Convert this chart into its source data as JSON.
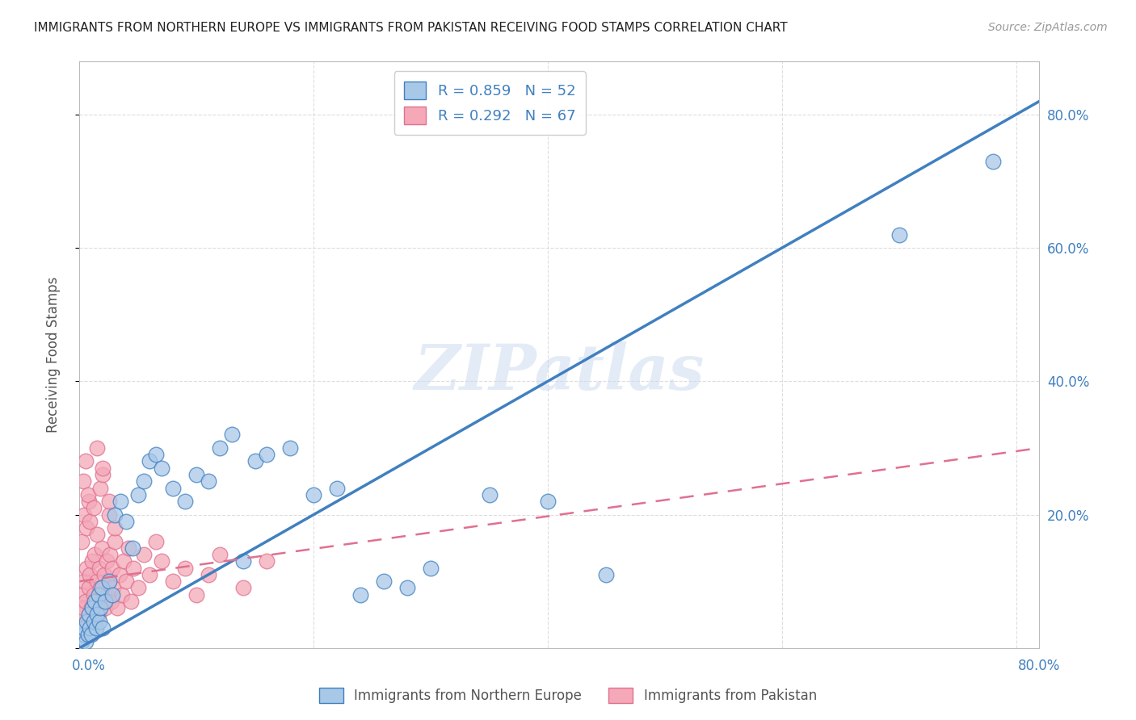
{
  "title": "IMMIGRANTS FROM NORTHERN EUROPE VS IMMIGRANTS FROM PAKISTAN RECEIVING FOOD STAMPS CORRELATION CHART",
  "source": "Source: ZipAtlas.com",
  "ylabel": "Receiving Food Stamps",
  "blue_R": "R = 0.859",
  "blue_N": "N = 52",
  "pink_R": "R = 0.292",
  "pink_N": "N = 67",
  "legend_label_blue": "Immigrants from Northern Europe",
  "legend_label_pink": "Immigrants from Pakistan",
  "blue_color": "#A8C8E8",
  "pink_color": "#F4A8B8",
  "blue_line_color": "#4080C0",
  "pink_line_color": "#E07090",
  "watermark": "ZIPatlas",
  "background_color": "#FFFFFF",
  "grid_color": "#DDDDDD",
  "xlim": [
    0.0,
    0.82
  ],
  "ylim": [
    0.0,
    0.88
  ],
  "blue_line_x0": 0.0,
  "blue_line_y0": 0.0,
  "blue_line_x1": 0.82,
  "blue_line_y1": 0.82,
  "pink_line_x0": 0.0,
  "pink_line_y0": 0.1,
  "pink_line_x1": 0.82,
  "pink_line_y1": 0.3,
  "blue_scatter_x": [
    0.002,
    0.003,
    0.004,
    0.005,
    0.006,
    0.007,
    0.008,
    0.009,
    0.01,
    0.011,
    0.012,
    0.013,
    0.014,
    0.015,
    0.016,
    0.017,
    0.018,
    0.019,
    0.02,
    0.022,
    0.025,
    0.028,
    0.03,
    0.035,
    0.04,
    0.045,
    0.05,
    0.055,
    0.06,
    0.065,
    0.07,
    0.08,
    0.09,
    0.1,
    0.11,
    0.12,
    0.13,
    0.14,
    0.15,
    0.16,
    0.18,
    0.2,
    0.22,
    0.24,
    0.26,
    0.28,
    0.3,
    0.35,
    0.4,
    0.45,
    0.7,
    0.78
  ],
  "blue_scatter_y": [
    0.01,
    0.02,
    0.03,
    0.01,
    0.04,
    0.02,
    0.05,
    0.03,
    0.02,
    0.06,
    0.04,
    0.07,
    0.03,
    0.05,
    0.08,
    0.04,
    0.06,
    0.09,
    0.03,
    0.07,
    0.1,
    0.08,
    0.2,
    0.22,
    0.19,
    0.15,
    0.23,
    0.25,
    0.28,
    0.29,
    0.27,
    0.24,
    0.22,
    0.26,
    0.25,
    0.3,
    0.32,
    0.13,
    0.28,
    0.29,
    0.3,
    0.23,
    0.24,
    0.08,
    0.1,
    0.09,
    0.12,
    0.23,
    0.22,
    0.11,
    0.62,
    0.73
  ],
  "pink_scatter_x": [
    0.001,
    0.002,
    0.003,
    0.004,
    0.005,
    0.006,
    0.007,
    0.008,
    0.009,
    0.01,
    0.011,
    0.012,
    0.013,
    0.014,
    0.015,
    0.016,
    0.017,
    0.018,
    0.019,
    0.02,
    0.021,
    0.022,
    0.023,
    0.024,
    0.025,
    0.026,
    0.027,
    0.028,
    0.029,
    0.03,
    0.032,
    0.034,
    0.036,
    0.038,
    0.04,
    0.042,
    0.044,
    0.046,
    0.05,
    0.055,
    0.06,
    0.065,
    0.07,
    0.08,
    0.09,
    0.1,
    0.11,
    0.12,
    0.14,
    0.16,
    0.002,
    0.004,
    0.006,
    0.008,
    0.003,
    0.005,
    0.007,
    0.009,
    0.012,
    0.015,
    0.018,
    0.02,
    0.025,
    0.015,
    0.02,
    0.025,
    0.03
  ],
  "pink_scatter_y": [
    0.05,
    0.08,
    0.06,
    0.1,
    0.07,
    0.12,
    0.04,
    0.09,
    0.11,
    0.06,
    0.13,
    0.08,
    0.14,
    0.07,
    0.1,
    0.05,
    0.12,
    0.09,
    0.15,
    0.07,
    0.11,
    0.06,
    0.13,
    0.08,
    0.1,
    0.14,
    0.07,
    0.12,
    0.09,
    0.16,
    0.06,
    0.11,
    0.08,
    0.13,
    0.1,
    0.15,
    0.07,
    0.12,
    0.09,
    0.14,
    0.11,
    0.16,
    0.13,
    0.1,
    0.12,
    0.08,
    0.11,
    0.14,
    0.09,
    0.13,
    0.16,
    0.2,
    0.18,
    0.22,
    0.25,
    0.28,
    0.23,
    0.19,
    0.21,
    0.17,
    0.24,
    0.26,
    0.2,
    0.3,
    0.27,
    0.22,
    0.18
  ]
}
